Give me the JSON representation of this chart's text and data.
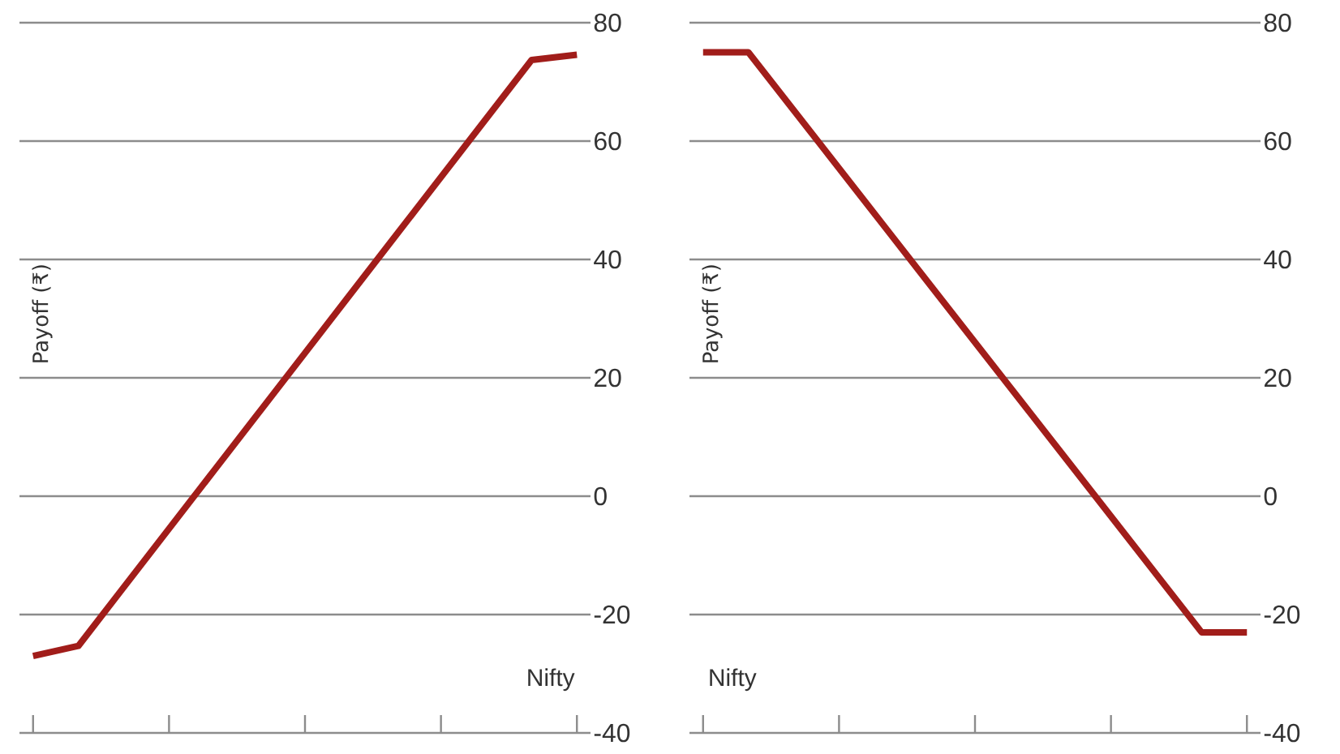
{
  "chart_data": [
    {
      "type": "line",
      "xlabel": "Nifty",
      "ylabel": "Payoff (₹)",
      "categories": [
        null,
        null,
        null,
        null,
        null,
        null,
        null,
        null,
        null,
        null,
        null,
        null,
        null
      ],
      "values": [
        -27,
        -25.3,
        -15.4,
        -5.5,
        4.4,
        14.3,
        24.2,
        34.1,
        44,
        53.9,
        63.8,
        73.7,
        74.6
      ],
      "color": "#a11d1a",
      "ylim": [
        -40,
        80
      ],
      "yticks": [
        -40,
        -20,
        0,
        20,
        40,
        60,
        80
      ],
      "grid": "y",
      "tick_labels": "y"
    },
    {
      "type": "line",
      "xlabel": "Nifty",
      "ylabel": "Payoff (₹)",
      "categories": [
        null,
        null,
        null,
        null,
        null,
        null,
        null,
        null,
        null,
        null,
        null,
        null,
        null
      ],
      "values": [
        75,
        75,
        65.2,
        55.4,
        45.6,
        35.8,
        26,
        16.2,
        6.4,
        -3.4,
        -13.2,
        -23,
        -23
      ],
      "color": "#a11d1a",
      "ylim": [
        -40,
        80
      ],
      "yticks": [
        -40,
        -20,
        0,
        20,
        40,
        60,
        80
      ],
      "grid": "y",
      "tick_labels": "y"
    }
  ]
}
